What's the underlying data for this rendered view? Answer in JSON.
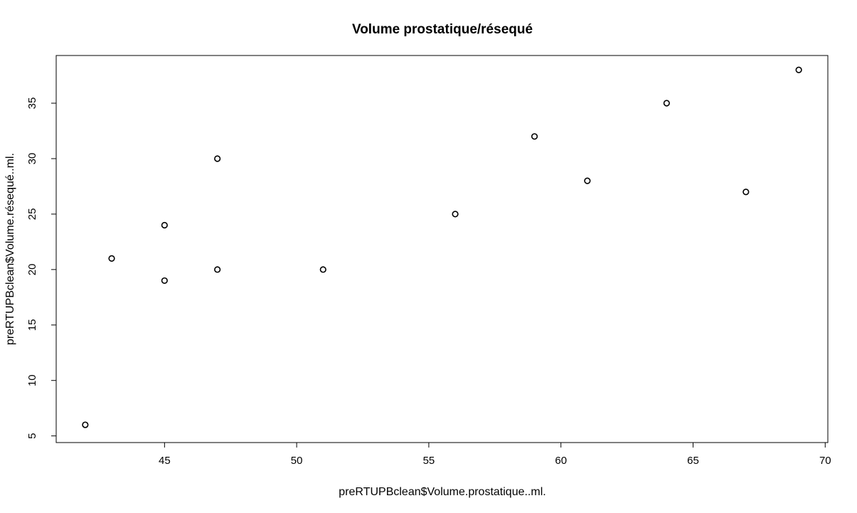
{
  "chart_data": {
    "type": "scatter",
    "title": "Volume prostatique/résequé",
    "xlabel": "preRTUPBclean$Volume.prostatique..ml.",
    "ylabel": "preRTUPBclean$Volume.résequé..ml.",
    "xlim": [
      40.9,
      70.1
    ],
    "ylim": [
      4.4,
      39.3
    ],
    "x_ticks": [
      45,
      50,
      55,
      60,
      65,
      70
    ],
    "y_ticks": [
      5,
      10,
      15,
      20,
      25,
      30,
      35
    ],
    "grid": false,
    "marker": "open-circle",
    "points": [
      {
        "x": 42,
        "y": 6
      },
      {
        "x": 43,
        "y": 21
      },
      {
        "x": 45,
        "y": 24
      },
      {
        "x": 45,
        "y": 19
      },
      {
        "x": 47,
        "y": 30
      },
      {
        "x": 47,
        "y": 20
      },
      {
        "x": 51,
        "y": 20
      },
      {
        "x": 56,
        "y": 25
      },
      {
        "x": 59,
        "y": 32
      },
      {
        "x": 61,
        "y": 28
      },
      {
        "x": 64,
        "y": 35
      },
      {
        "x": 67,
        "y": 27
      },
      {
        "x": 69,
        "y": 38
      }
    ]
  }
}
